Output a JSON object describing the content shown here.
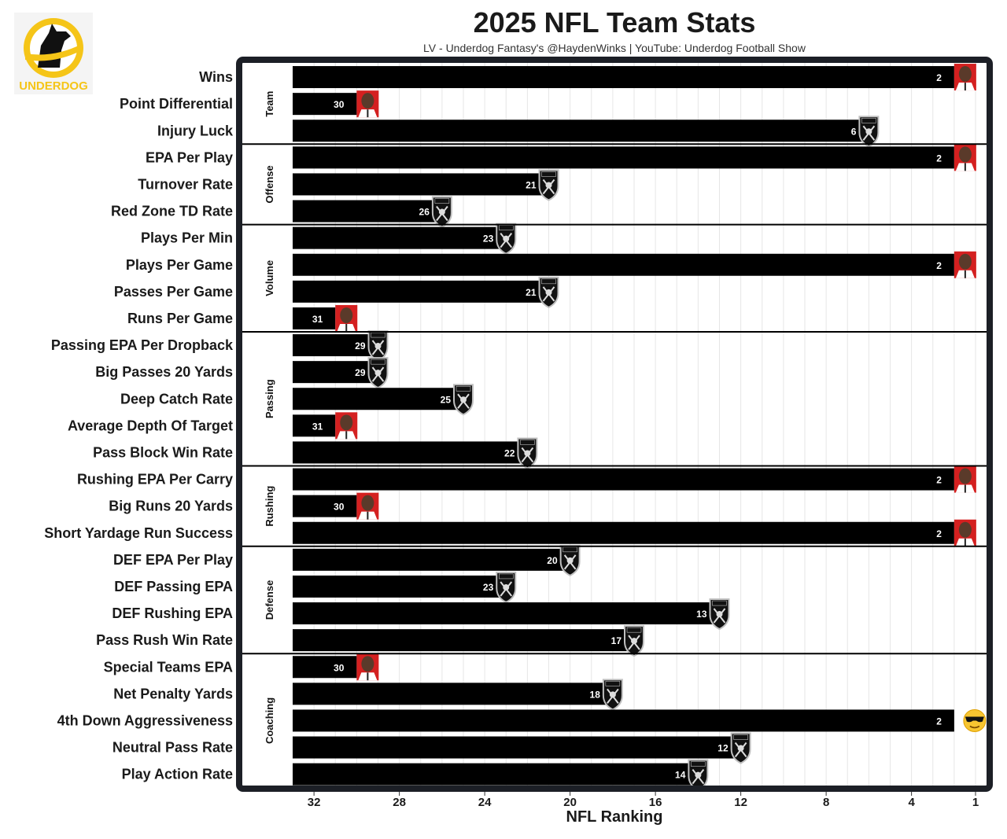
{
  "header": {
    "title": "2025 NFL Team Stats",
    "subtitle": "LV - Underdog Fantasy's @HaydenWinks | YouTube: Underdog Football Show",
    "logo_text": "UNDERDOG"
  },
  "colors": {
    "bar": "#000000",
    "frame": "#1c1f26",
    "grid": "#e6e6e6",
    "logo_yellow": "#f5c518",
    "bad_marker_bg": "#d42020",
    "good_marker": "#f7c531"
  },
  "chart_data": {
    "type": "bar",
    "orientation": "horizontal",
    "title": "2025 NFL Team Stats",
    "subtitle": "LV - Underdog Fantasy's @HaydenWinks | YouTube: Underdog Football Show",
    "xlabel": "NFL Ranking",
    "ylabel": "",
    "x_axis": {
      "reversed": true,
      "range": [
        33,
        1
      ],
      "ticks": [
        32,
        28,
        24,
        20,
        16,
        12,
        8,
        4,
        1
      ]
    },
    "grid": "vertical",
    "groups": [
      {
        "name": "Team",
        "rows": [
          {
            "label": "Wins",
            "rank": 2,
            "marker": "red-face"
          },
          {
            "label": "Point Differential",
            "rank": 30,
            "marker": "red-face"
          },
          {
            "label": "Injury Luck",
            "rank": 6,
            "marker": "raiders-shield"
          }
        ]
      },
      {
        "name": "Offense",
        "rows": [
          {
            "label": "EPA Per Play",
            "rank": 2,
            "marker": "red-face"
          },
          {
            "label": "Turnover Rate",
            "rank": 21,
            "marker": "raiders-shield"
          },
          {
            "label": "Red Zone TD Rate",
            "rank": 26,
            "marker": "raiders-shield"
          }
        ]
      },
      {
        "name": "Volume",
        "rows": [
          {
            "label": "Plays Per Min",
            "rank": 23,
            "marker": "raiders-shield"
          },
          {
            "label": "Plays Per Game",
            "rank": 2,
            "marker": "red-face"
          },
          {
            "label": "Passes Per Game",
            "rank": 21,
            "marker": "raiders-shield"
          },
          {
            "label": "Runs Per Game",
            "rank": 31,
            "marker": "red-face"
          }
        ]
      },
      {
        "name": "Passing",
        "rows": [
          {
            "label": "Passing EPA Per Dropback",
            "rank": 29,
            "marker": "raiders-shield"
          },
          {
            "label": "Big Passes 20 Yards",
            "rank": 29,
            "marker": "raiders-shield"
          },
          {
            "label": "Deep Catch Rate",
            "rank": 25,
            "marker": "raiders-shield"
          },
          {
            "label": "Average Depth Of Target",
            "rank": 31,
            "marker": "red-face"
          },
          {
            "label": "Pass Block Win Rate",
            "rank": 22,
            "marker": "raiders-shield"
          }
        ]
      },
      {
        "name": "Rushing",
        "rows": [
          {
            "label": "Rushing EPA Per Carry",
            "rank": 2,
            "marker": "red-face"
          },
          {
            "label": "Big Runs 20 Yards",
            "rank": 30,
            "marker": "red-face"
          },
          {
            "label": "Short Yardage Run Success",
            "rank": 2,
            "marker": "red-face"
          }
        ]
      },
      {
        "name": "Defense",
        "rows": [
          {
            "label": "DEF EPA Per Play",
            "rank": 20,
            "marker": "raiders-shield"
          },
          {
            "label": "DEF Passing EPA",
            "rank": 23,
            "marker": "raiders-shield"
          },
          {
            "label": "DEF Rushing EPA",
            "rank": 13,
            "marker": "raiders-shield"
          },
          {
            "label": "Pass Rush Win Rate",
            "rank": 17,
            "marker": "raiders-shield"
          }
        ]
      },
      {
        "name": "Coaching",
        "rows": [
          {
            "label": "Special Teams EPA",
            "rank": 30,
            "marker": "red-face"
          },
          {
            "label": "Net Penalty Yards",
            "rank": 18,
            "marker": "raiders-shield"
          },
          {
            "label": "4th Down Aggressiveness",
            "rank": 2,
            "marker": "sunglasses-emoji"
          },
          {
            "label": "Neutral Pass Rate",
            "rank": 12,
            "marker": "raiders-shield"
          },
          {
            "label": "Play Action Rate",
            "rank": 14,
            "marker": "raiders-shield"
          }
        ]
      }
    ]
  }
}
